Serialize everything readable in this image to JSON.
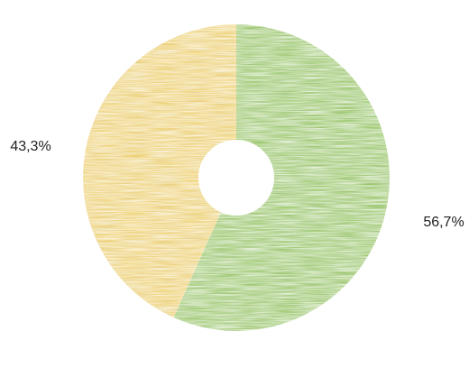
{
  "chart_data": {
    "type": "pie",
    "donut": true,
    "title": "",
    "legend": "none",
    "slices": [
      {
        "value": 56.7,
        "label": "56,7%",
        "color": "#8dc850"
      },
      {
        "value": 43.3,
        "label": "43,3%",
        "color": "#fcd55a"
      }
    ],
    "start_angle_deg": 0,
    "direction": "clockwise",
    "texture": "horizontal-lines"
  }
}
